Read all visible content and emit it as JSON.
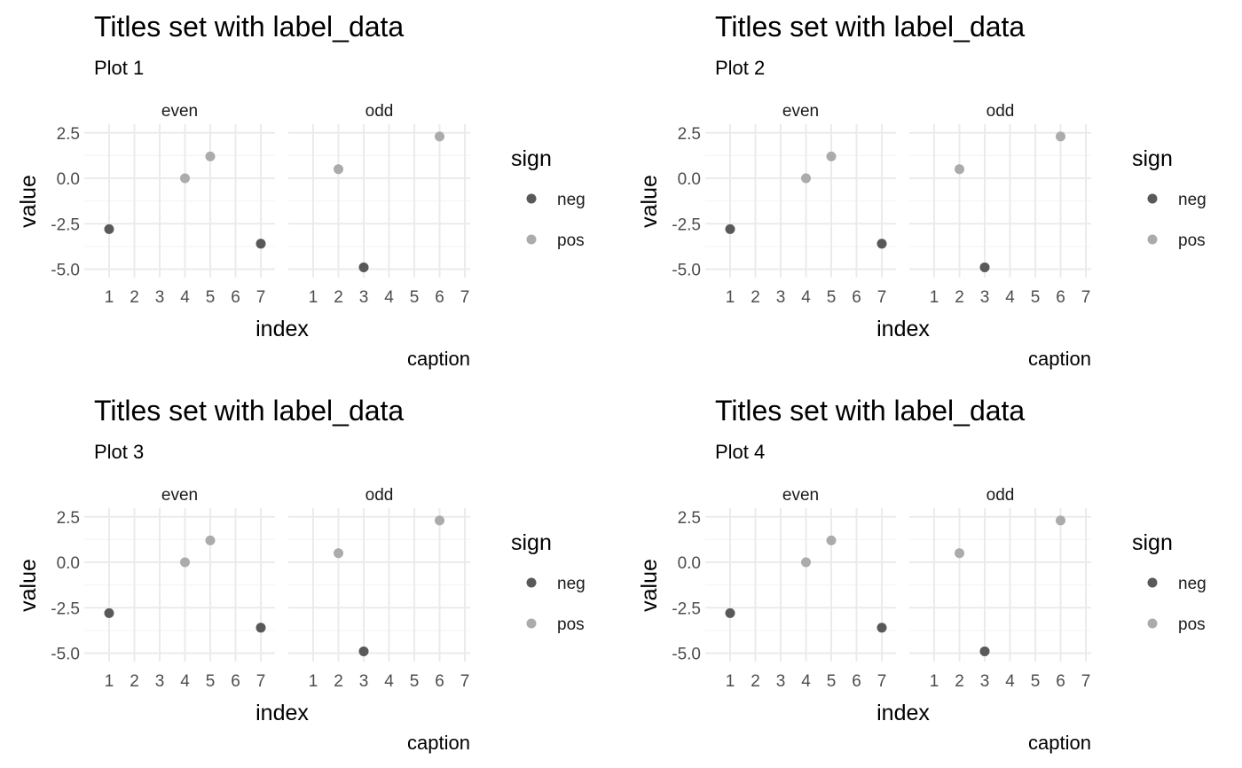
{
  "colors": {
    "neg": "#595959",
    "pos": "#ababab",
    "grid_major": "#ebebeb",
    "grid_minor": "#f5f5f5",
    "title": "#000000",
    "tick": "#4d4d4d"
  },
  "chart_data": [
    {
      "type": "scatter",
      "title": "Titles set with label_data",
      "subtitle": "Plot 1",
      "xlabel": "index",
      "ylabel": "value",
      "caption": "caption",
      "legend": {
        "title": "sign",
        "position": "right",
        "entries": [
          "neg",
          "pos"
        ]
      },
      "xlim": [
        1,
        7
      ],
      "ylim": [
        -5,
        2.5
      ],
      "xticks": [
        1,
        2,
        3,
        4,
        5,
        6,
        7
      ],
      "yticks": [
        2.5,
        0.0,
        -2.5,
        -5.0
      ],
      "ytick_labels": [
        "2.5",
        "0.0",
        "-2.5",
        "-5.0"
      ],
      "grid": true,
      "facets": [
        {
          "label": "even",
          "points": [
            {
              "x": 1,
              "y": -2.8,
              "sign": "neg"
            },
            {
              "x": 4,
              "y": 0.0,
              "sign": "pos"
            },
            {
              "x": 5,
              "y": 1.2,
              "sign": "pos"
            },
            {
              "x": 7,
              "y": -3.6,
              "sign": "neg"
            }
          ]
        },
        {
          "label": "odd",
          "points": [
            {
              "x": 2,
              "y": 0.5,
              "sign": "pos"
            },
            {
              "x": 3,
              "y": -4.9,
              "sign": "neg"
            },
            {
              "x": 6,
              "y": 2.3,
              "sign": "pos"
            }
          ]
        }
      ]
    },
    {
      "type": "scatter",
      "title": "Titles set with label_data",
      "subtitle": "Plot 2",
      "xlabel": "index",
      "ylabel": "value",
      "caption": "caption",
      "legend": {
        "title": "sign",
        "position": "right",
        "entries": [
          "neg",
          "pos"
        ]
      },
      "xlim": [
        1,
        7
      ],
      "ylim": [
        -5,
        2.5
      ],
      "xticks": [
        1,
        2,
        3,
        4,
        5,
        6,
        7
      ],
      "yticks": [
        2.5,
        0.0,
        -2.5,
        -5.0
      ],
      "ytick_labels": [
        "2.5",
        "0.0",
        "-2.5",
        "-5.0"
      ],
      "grid": true,
      "facets": [
        {
          "label": "even",
          "points": [
            {
              "x": 1,
              "y": -2.8,
              "sign": "neg"
            },
            {
              "x": 4,
              "y": 0.0,
              "sign": "pos"
            },
            {
              "x": 5,
              "y": 1.2,
              "sign": "pos"
            },
            {
              "x": 7,
              "y": -3.6,
              "sign": "neg"
            }
          ]
        },
        {
          "label": "odd",
          "points": [
            {
              "x": 2,
              "y": 0.5,
              "sign": "pos"
            },
            {
              "x": 3,
              "y": -4.9,
              "sign": "neg"
            },
            {
              "x": 6,
              "y": 2.3,
              "sign": "pos"
            }
          ]
        }
      ]
    },
    {
      "type": "scatter",
      "title": "Titles set with label_data",
      "subtitle": "Plot 3",
      "xlabel": "index",
      "ylabel": "value",
      "caption": "caption",
      "legend": {
        "title": "sign",
        "position": "right",
        "entries": [
          "neg",
          "pos"
        ]
      },
      "xlim": [
        1,
        7
      ],
      "ylim": [
        -5,
        2.5
      ],
      "xticks": [
        1,
        2,
        3,
        4,
        5,
        6,
        7
      ],
      "yticks": [
        2.5,
        0.0,
        -2.5,
        -5.0
      ],
      "ytick_labels": [
        "2.5",
        "0.0",
        "-2.5",
        "-5.0"
      ],
      "grid": true,
      "facets": [
        {
          "label": "even",
          "points": [
            {
              "x": 1,
              "y": -2.8,
              "sign": "neg"
            },
            {
              "x": 4,
              "y": 0.0,
              "sign": "pos"
            },
            {
              "x": 5,
              "y": 1.2,
              "sign": "pos"
            },
            {
              "x": 7,
              "y": -3.6,
              "sign": "neg"
            }
          ]
        },
        {
          "label": "odd",
          "points": [
            {
              "x": 2,
              "y": 0.5,
              "sign": "pos"
            },
            {
              "x": 3,
              "y": -4.9,
              "sign": "neg"
            },
            {
              "x": 6,
              "y": 2.3,
              "sign": "pos"
            }
          ]
        }
      ]
    },
    {
      "type": "scatter",
      "title": "Titles set with label_data",
      "subtitle": "Plot 4",
      "xlabel": "index",
      "ylabel": "value",
      "caption": "caption",
      "legend": {
        "title": "sign",
        "position": "right",
        "entries": [
          "neg",
          "pos"
        ]
      },
      "xlim": [
        1,
        7
      ],
      "ylim": [
        -5,
        2.5
      ],
      "xticks": [
        1,
        2,
        3,
        4,
        5,
        6,
        7
      ],
      "yticks": [
        2.5,
        0.0,
        -2.5,
        -5.0
      ],
      "ytick_labels": [
        "2.5",
        "0.0",
        "-2.5",
        "-5.0"
      ],
      "grid": true,
      "facets": [
        {
          "label": "even",
          "points": [
            {
              "x": 1,
              "y": -2.8,
              "sign": "neg"
            },
            {
              "x": 4,
              "y": 0.0,
              "sign": "pos"
            },
            {
              "x": 5,
              "y": 1.2,
              "sign": "pos"
            },
            {
              "x": 7,
              "y": -3.6,
              "sign": "neg"
            }
          ]
        },
        {
          "label": "odd",
          "points": [
            {
              "x": 2,
              "y": 0.5,
              "sign": "pos"
            },
            {
              "x": 3,
              "y": -4.9,
              "sign": "neg"
            },
            {
              "x": 6,
              "y": 2.3,
              "sign": "pos"
            }
          ]
        }
      ]
    }
  ]
}
